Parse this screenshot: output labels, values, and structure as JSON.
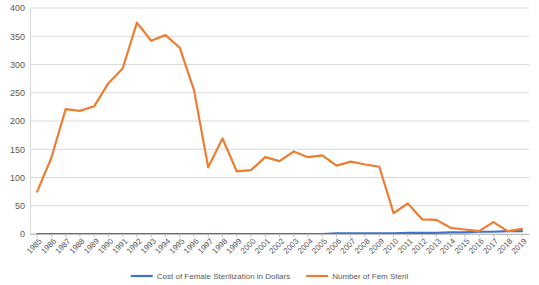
{
  "chart_data": {
    "type": "line",
    "categories": [
      "1985",
      "1986",
      "1987",
      "1988",
      "1989",
      "1990",
      "1991",
      "1992",
      "1993",
      "1994",
      "1995",
      "1996",
      "1997",
      "1998",
      "1999",
      "2000",
      "2001",
      "2002",
      "2003",
      "2004",
      "2005",
      "2006",
      "2007",
      "2008",
      "2009",
      "2010",
      "2011",
      "2012",
      "2013",
      "2014",
      "2015",
      "2016",
      "2017",
      "2018",
      "2019"
    ],
    "series": [
      {
        "name": "Cost of Female Sterilization in Dollars",
        "color": "#4472c4",
        "values": [
          0,
          0,
          0,
          0,
          0,
          0,
          0,
          0,
          0,
          0,
          0,
          0,
          0,
          0,
          0,
          0,
          0,
          0,
          0,
          0,
          0,
          1,
          1,
          1,
          1,
          1,
          2,
          2,
          2,
          3,
          3,
          4,
          4,
          5,
          5
        ]
      },
      {
        "name": "Number of Fem Steril",
        "color": "#ed7d31",
        "values": [
          75,
          135,
          221,
          218,
          226,
          267,
          293,
          374,
          342,
          352,
          330,
          255,
          118,
          169,
          111,
          113,
          136,
          129,
          146,
          136,
          139,
          121,
          128,
          123,
          119,
          37,
          54,
          26,
          25,
          11,
          8,
          5,
          21,
          5,
          9
        ]
      }
    ],
    "ylim": [
      0,
      400
    ],
    "yticks": [
      0,
      50,
      100,
      150,
      200,
      250,
      300,
      350,
      400
    ],
    "grid": true,
    "legend": "bottom"
  }
}
